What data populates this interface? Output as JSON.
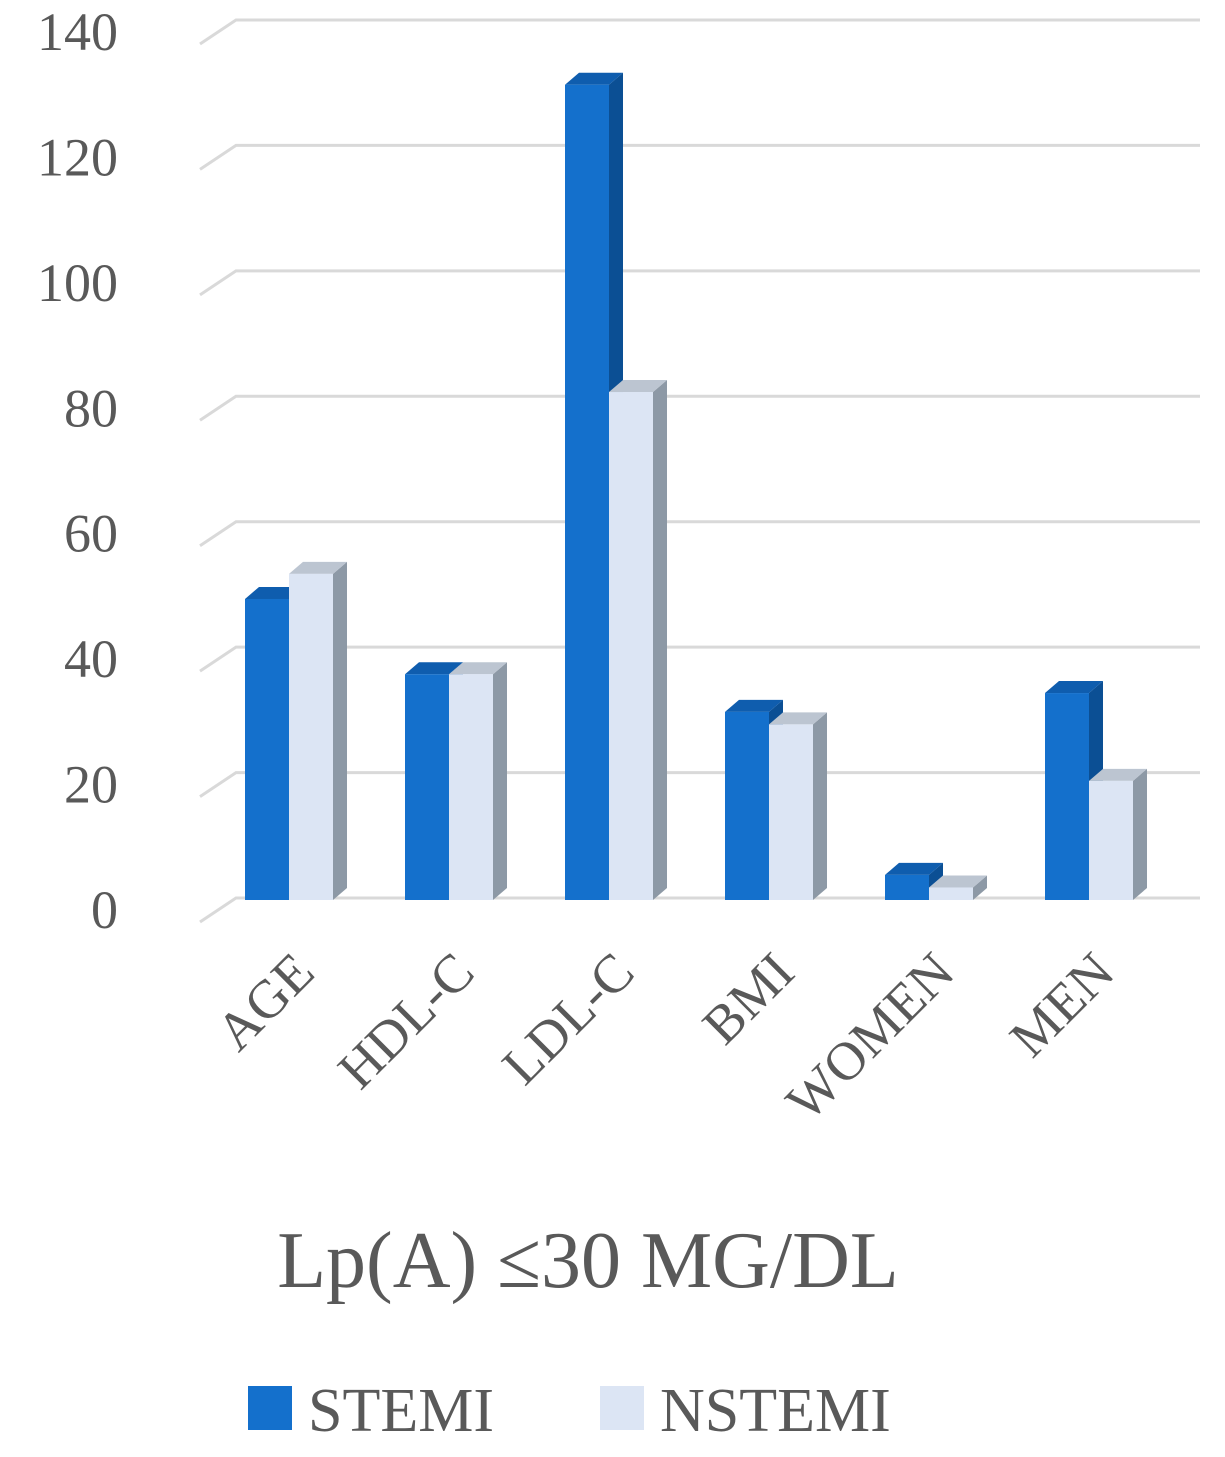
{
  "chart_data": {
    "type": "bar",
    "subtype": "3d-clustered-column",
    "title": "Lp(A) ≤30 MG/DL",
    "xlabel": "",
    "ylabel": "",
    "categories": [
      "AGE",
      "HDL-C",
      "LDL-C",
      "BMI",
      "WOMEN",
      "MEN"
    ],
    "series": [
      {
        "name": "STEMI",
        "values": [
          48,
          36,
          130,
          30,
          4,
          33
        ],
        "color": "#1470CC"
      },
      {
        "name": "NSTEMI",
        "values": [
          52,
          36,
          81,
          28,
          2,
          19
        ],
        "color": "#DCE5F4"
      }
    ],
    "ylim": [
      0,
      140
    ],
    "yticks": [
      0,
      20,
      40,
      60,
      80,
      100,
      120,
      140
    ],
    "grid": true,
    "legend_position": "bottom"
  }
}
